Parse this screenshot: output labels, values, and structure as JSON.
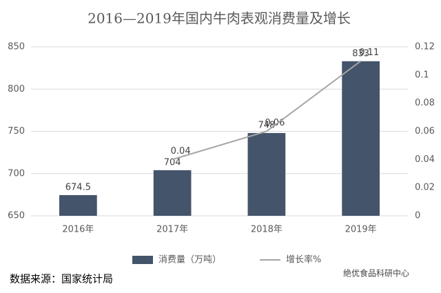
{
  "chart_data": {
    "type": "bar",
    "title": "2016—2019年国内牛肉表观消费量及增长",
    "categories": [
      "2016年",
      "2017年",
      "2018年",
      "2019年"
    ],
    "series": [
      {
        "name": "消费量（万吨）",
        "type": "bar",
        "color": "#44546a",
        "values": [
          674.5,
          704,
          748,
          833
        ]
      },
      {
        "name": "增长率%",
        "type": "line",
        "axis": "y2",
        "color": "#a5a5a5",
        "values": [
          null,
          0.04,
          0.06,
          0.11
        ]
      }
    ],
    "ylim": [
      650,
      850
    ],
    "yticks": [
      650,
      700,
      750,
      800,
      850
    ],
    "y2lim": [
      0,
      0.12
    ],
    "y2ticks": [
      0,
      0.02,
      0.04,
      0.06,
      0.08,
      0.1,
      0.12
    ],
    "grid": true,
    "legend": "bottom",
    "source": "数据来源：国家统计局",
    "watermark": "绝优食品科研中心"
  }
}
